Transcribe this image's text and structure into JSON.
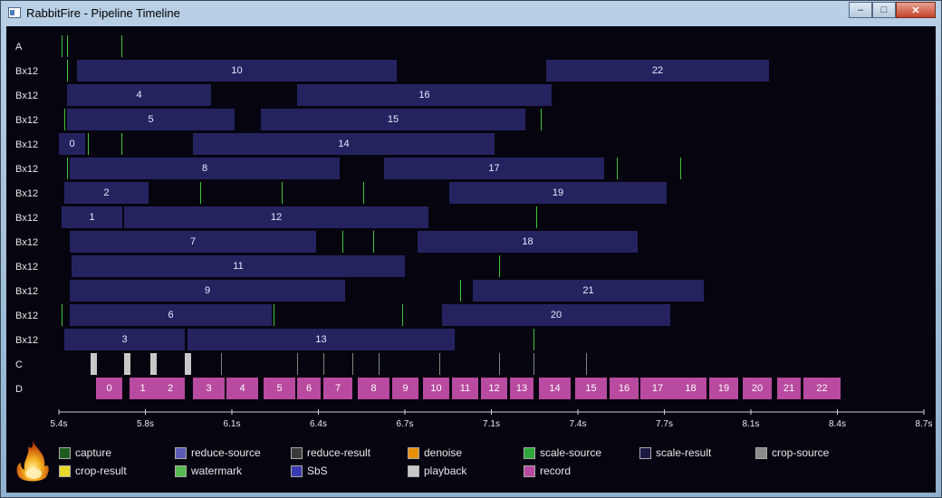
{
  "window": {
    "title": "RabbitFire - Pipeline Timeline",
    "min": "–",
    "max": "□",
    "close": "✕"
  },
  "lanes": {
    "a": "A",
    "bx": "Bx12",
    "c": "C",
    "d": "D"
  },
  "bars": [
    [
      {
        "v": "10",
        "s": 5.47,
        "e": 6.69
      },
      {
        "v": "22",
        "s": 7.26,
        "e": 8.11
      }
    ],
    [
      {
        "v": "4",
        "s": 5.43,
        "e": 5.98
      },
      {
        "v": "16",
        "s": 6.31,
        "e": 7.28
      }
    ],
    [
      {
        "v": "5",
        "s": 5.43,
        "e": 6.07
      },
      {
        "v": "15",
        "s": 6.17,
        "e": 7.18
      }
    ],
    [
      {
        "v": "0",
        "s": 5.4,
        "e": 5.5
      },
      {
        "v": "14",
        "s": 5.91,
        "e": 7.06
      }
    ],
    [
      {
        "v": "8",
        "s": 5.44,
        "e": 6.47
      },
      {
        "v": "17",
        "s": 6.64,
        "e": 7.48
      }
    ],
    [
      {
        "v": "2",
        "s": 5.42,
        "e": 5.74
      },
      {
        "v": "19",
        "s": 6.89,
        "e": 7.72
      }
    ],
    [
      {
        "v": "1",
        "s": 5.41,
        "e": 5.64
      },
      {
        "v": "12",
        "s": 5.65,
        "e": 6.81
      }
    ],
    [
      {
        "v": "7",
        "s": 5.44,
        "e": 6.38
      },
      {
        "v": "18",
        "s": 6.77,
        "e": 7.61
      }
    ],
    [
      {
        "v": "11",
        "s": 5.45,
        "e": 6.72
      }
    ],
    [
      {
        "v": "9",
        "s": 5.44,
        "e": 6.49
      },
      {
        "v": "21",
        "s": 6.98,
        "e": 7.86
      }
    ],
    [
      {
        "v": "6",
        "s": 5.44,
        "e": 6.21
      },
      {
        "v": "20",
        "s": 6.86,
        "e": 7.73
      }
    ],
    [
      {
        "v": "3",
        "s": 5.42,
        "e": 5.88
      },
      {
        "v": "13",
        "s": 5.89,
        "e": 6.91
      }
    ]
  ],
  "ticks": [
    [
      5.41,
      5.43,
      5.64
    ],
    [
      5.43
    ],
    [],
    [
      5.42,
      6.06,
      7.24
    ],
    [
      5.51,
      5.64
    ],
    [
      5.43,
      7.53,
      7.77
    ],
    [
      5.94,
      6.25,
      6.56
    ],
    [
      7.22
    ],
    [
      5.44,
      6.48,
      6.6
    ],
    [
      7.08
    ],
    [
      6.93
    ],
    [
      5.41,
      6.22,
      6.71
    ],
    [
      5.44,
      7.21
    ]
  ],
  "playback": [
    5.52,
    5.65,
    5.75,
    5.88
  ],
  "c_ticks": [
    6.02,
    6.31,
    6.41,
    6.52,
    6.62,
    6.85,
    7.08,
    7.21,
    7.41
  ],
  "records": [
    {
      "v": "0",
      "s": 5.54,
      "e": 5.64
    },
    {
      "v": "1",
      "s": 5.67,
      "e": 5.77
    },
    {
      "v": "2",
      "s": 5.77,
      "e": 5.88
    },
    {
      "v": "3",
      "s": 5.91,
      "e": 6.03
    },
    {
      "v": "4",
      "s": 6.04,
      "e": 6.16
    },
    {
      "v": "5",
      "s": 6.18,
      "e": 6.3
    },
    {
      "v": "6",
      "s": 6.31,
      "e": 6.4
    },
    {
      "v": "7",
      "s": 6.41,
      "e": 6.52
    },
    {
      "v": "8",
      "s": 6.54,
      "e": 6.66
    },
    {
      "v": "9",
      "s": 6.67,
      "e": 6.77
    },
    {
      "v": "10",
      "s": 6.79,
      "e": 6.89
    },
    {
      "v": "11",
      "s": 6.9,
      "e": 7.0
    },
    {
      "v": "12",
      "s": 7.01,
      "e": 7.11
    },
    {
      "v": "13",
      "s": 7.12,
      "e": 7.21
    },
    {
      "v": "14",
      "s": 7.23,
      "e": 7.35
    },
    {
      "v": "15",
      "s": 7.37,
      "e": 7.49
    },
    {
      "v": "16",
      "s": 7.5,
      "e": 7.61
    },
    {
      "v": "17",
      "s": 7.62,
      "e": 7.75
    },
    {
      "v": "18",
      "s": 7.75,
      "e": 7.87
    },
    {
      "v": "19",
      "s": 7.88,
      "e": 7.99
    },
    {
      "v": "20",
      "s": 8.01,
      "e": 8.12
    },
    {
      "v": "21",
      "s": 8.14,
      "e": 8.23
    },
    {
      "v": "22",
      "s": 8.24,
      "e": 8.38
    }
  ],
  "axis": {
    "min": 5.4,
    "max": 8.7,
    "ticks": [
      "5.4s",
      "5.8s",
      "6.1s",
      "6.4s",
      "6.7s",
      "7.1s",
      "7.4s",
      "7.7s",
      "8.1s",
      "8.4s",
      "8.7s"
    ]
  },
  "legend": [
    {
      "label": "capture",
      "color": "#1f5c1f"
    },
    {
      "label": "reduce-source",
      "color": "#5a5ab4"
    },
    {
      "label": "reduce-result",
      "color": "#3a3a3a"
    },
    {
      "label": "denoise",
      "color": "#e8900a"
    },
    {
      "label": "scale-source",
      "color": "#2ea83a"
    },
    {
      "label": "scale-result",
      "color": "#1c1a44"
    },
    {
      "label": "crop-source",
      "color": "#8a8a8a"
    },
    {
      "label": "crop-result",
      "color": "#e8d82a"
    },
    {
      "label": "watermark",
      "color": "#55b850"
    },
    {
      "label": "SbS",
      "color": "#3a3ab0"
    },
    {
      "label": "playback",
      "color": "#c8c8c8"
    },
    {
      "label": "record",
      "color": "#b84aa0"
    }
  ]
}
